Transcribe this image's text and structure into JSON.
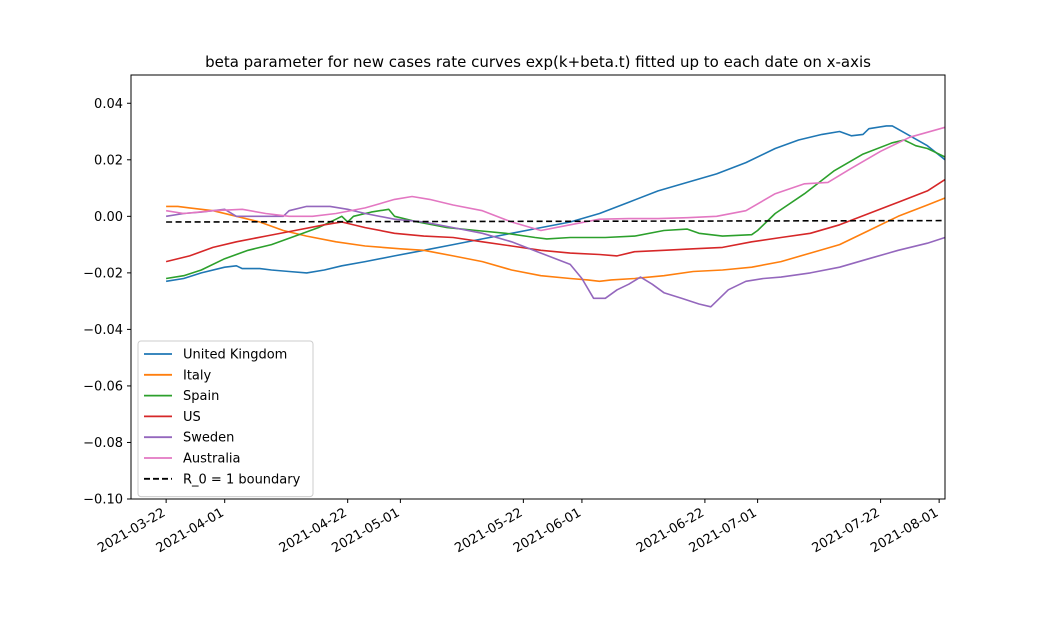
{
  "chart_data": {
    "type": "line",
    "title": "beta parameter for new cases rate curves exp(k+beta.t) fitted up to each date on x-axis",
    "xlabel": "",
    "ylabel": "",
    "xlim": [
      "2021-03-16",
      "2021-08-02"
    ],
    "ylim": [
      -0.1,
      0.05
    ],
    "grid": false,
    "legend_position": "lower-left",
    "x_ticks": [
      "2021-03-22",
      "2021-04-01",
      "2021-04-22",
      "2021-05-01",
      "2021-05-22",
      "2021-06-01",
      "2021-06-22",
      "2021-07-01",
      "2021-07-22",
      "2021-08-01"
    ],
    "y_ticks": [
      0.04,
      0.02,
      0.0,
      -0.02,
      -0.04,
      -0.06,
      -0.08,
      -0.1
    ],
    "y_tick_labels": [
      "0.04",
      "0.02",
      "0.00",
      "−0.02",
      "−0.04",
      "−0.06",
      "−0.08",
      "−0.10"
    ],
    "series": [
      {
        "name": "United Kingdom",
        "color": "#1f77b4",
        "points": [
          [
            "2021-03-22",
            -0.023
          ],
          [
            "2021-03-25",
            -0.022
          ],
          [
            "2021-03-28",
            -0.02
          ],
          [
            "2021-04-01",
            -0.018
          ],
          [
            "2021-04-03",
            -0.0175
          ],
          [
            "2021-04-04",
            -0.0185
          ],
          [
            "2021-04-07",
            -0.0185
          ],
          [
            "2021-04-09",
            -0.019
          ],
          [
            "2021-04-12",
            -0.0195
          ],
          [
            "2021-04-15",
            -0.02
          ],
          [
            "2021-04-18",
            -0.019
          ],
          [
            "2021-04-21",
            -0.0175
          ],
          [
            "2021-04-25",
            -0.016
          ],
          [
            "2021-04-30",
            -0.014
          ],
          [
            "2021-05-05",
            -0.012
          ],
          [
            "2021-05-10",
            -0.01
          ],
          [
            "2021-05-15",
            -0.008
          ],
          [
            "2021-05-20",
            -0.006
          ],
          [
            "2021-05-25",
            -0.004
          ],
          [
            "2021-05-30",
            -0.002
          ],
          [
            "2021-06-04",
            0.001
          ],
          [
            "2021-06-09",
            0.005
          ],
          [
            "2021-06-14",
            0.009
          ],
          [
            "2021-06-19",
            0.012
          ],
          [
            "2021-06-24",
            0.015
          ],
          [
            "2021-06-29",
            0.019
          ],
          [
            "2021-07-04",
            0.024
          ],
          [
            "2021-07-08",
            0.027
          ],
          [
            "2021-07-12",
            0.029
          ],
          [
            "2021-07-15",
            0.03
          ],
          [
            "2021-07-17",
            0.0285
          ],
          [
            "2021-07-19",
            0.029
          ],
          [
            "2021-07-20",
            0.031
          ],
          [
            "2021-07-23",
            0.032
          ],
          [
            "2021-07-24",
            0.032
          ],
          [
            "2021-07-27",
            0.0285
          ],
          [
            "2021-07-30",
            0.025
          ],
          [
            "2021-08-02",
            0.02
          ]
        ]
      },
      {
        "name": "Italy",
        "color": "#ff7f0e",
        "points": [
          [
            "2021-03-22",
            0.0035
          ],
          [
            "2021-03-24",
            0.0035
          ],
          [
            "2021-03-26",
            0.003
          ],
          [
            "2021-03-30",
            0.002
          ],
          [
            "2021-04-03",
            0.0
          ],
          [
            "2021-04-07",
            -0.002
          ],
          [
            "2021-04-11",
            -0.005
          ],
          [
            "2021-04-15",
            -0.007
          ],
          [
            "2021-04-20",
            -0.009
          ],
          [
            "2021-04-25",
            -0.0105
          ],
          [
            "2021-04-28",
            -0.011
          ],
          [
            "2021-05-01",
            -0.0115
          ],
          [
            "2021-05-05",
            -0.012
          ],
          [
            "2021-05-10",
            -0.014
          ],
          [
            "2021-05-15",
            -0.016
          ],
          [
            "2021-05-20",
            -0.019
          ],
          [
            "2021-05-25",
            -0.021
          ],
          [
            "2021-05-30",
            -0.022
          ],
          [
            "2021-06-02",
            -0.0225
          ],
          [
            "2021-06-04",
            -0.023
          ],
          [
            "2021-06-06",
            -0.0225
          ],
          [
            "2021-06-10",
            -0.022
          ],
          [
            "2021-06-15",
            -0.021
          ],
          [
            "2021-06-20",
            -0.0195
          ],
          [
            "2021-06-25",
            -0.019
          ],
          [
            "2021-06-30",
            -0.018
          ],
          [
            "2021-07-05",
            -0.016
          ],
          [
            "2021-07-10",
            -0.013
          ],
          [
            "2021-07-15",
            -0.01
          ],
          [
            "2021-07-20",
            -0.005
          ],
          [
            "2021-07-25",
            0.0
          ],
          [
            "2021-07-30",
            0.004
          ],
          [
            "2021-08-02",
            0.0065
          ]
        ]
      },
      {
        "name": "Spain",
        "color": "#2ca02c",
        "points": [
          [
            "2021-03-22",
            -0.022
          ],
          [
            "2021-03-25",
            -0.021
          ],
          [
            "2021-03-28",
            -0.019
          ],
          [
            "2021-04-01",
            -0.015
          ],
          [
            "2021-04-05",
            -0.012
          ],
          [
            "2021-04-09",
            -0.01
          ],
          [
            "2021-04-13",
            -0.007
          ],
          [
            "2021-04-17",
            -0.004
          ],
          [
            "2021-04-20",
            -0.001
          ],
          [
            "2021-04-21",
            0.0
          ],
          [
            "2021-04-22",
            -0.002
          ],
          [
            "2021-04-23",
            0.0
          ],
          [
            "2021-04-26",
            0.0015
          ],
          [
            "2021-04-29",
            0.0025
          ],
          [
            "2021-04-30",
            0.0
          ],
          [
            "2021-05-04",
            -0.002
          ],
          [
            "2021-05-09",
            -0.004
          ],
          [
            "2021-05-14",
            -0.005
          ],
          [
            "2021-05-19",
            -0.006
          ],
          [
            "2021-05-24",
            -0.0075
          ],
          [
            "2021-05-26",
            -0.008
          ],
          [
            "2021-05-30",
            -0.0075
          ],
          [
            "2021-06-05",
            -0.0075
          ],
          [
            "2021-06-10",
            -0.007
          ],
          [
            "2021-06-15",
            -0.005
          ],
          [
            "2021-06-19",
            -0.0045
          ],
          [
            "2021-06-21",
            -0.006
          ],
          [
            "2021-06-25",
            -0.007
          ],
          [
            "2021-06-30",
            -0.0065
          ],
          [
            "2021-07-01",
            -0.005
          ],
          [
            "2021-07-04",
            0.001
          ],
          [
            "2021-07-09",
            0.008
          ],
          [
            "2021-07-14",
            0.016
          ],
          [
            "2021-07-19",
            0.022
          ],
          [
            "2021-07-24",
            0.026
          ],
          [
            "2021-07-26",
            0.027
          ],
          [
            "2021-07-27",
            0.026
          ],
          [
            "2021-07-28",
            0.025
          ],
          [
            "2021-07-30",
            0.024
          ],
          [
            "2021-07-31",
            0.023
          ],
          [
            "2021-08-02",
            0.021
          ]
        ]
      },
      {
        "name": "US",
        "color": "#d62728",
        "points": [
          [
            "2021-03-22",
            -0.016
          ],
          [
            "2021-03-26",
            -0.014
          ],
          [
            "2021-03-30",
            -0.011
          ],
          [
            "2021-04-03",
            -0.009
          ],
          [
            "2021-04-08",
            -0.007
          ],
          [
            "2021-04-13",
            -0.005
          ],
          [
            "2021-04-18",
            -0.003
          ],
          [
            "2021-04-21",
            -0.002
          ],
          [
            "2021-04-25",
            -0.004
          ],
          [
            "2021-04-30",
            -0.006
          ],
          [
            "2021-05-05",
            -0.007
          ],
          [
            "2021-05-10",
            -0.0075
          ],
          [
            "2021-05-15",
            -0.009
          ],
          [
            "2021-05-20",
            -0.0105
          ],
          [
            "2021-05-25",
            -0.012
          ],
          [
            "2021-05-30",
            -0.013
          ],
          [
            "2021-06-04",
            -0.0135
          ],
          [
            "2021-06-07",
            -0.014
          ],
          [
            "2021-06-10",
            -0.0125
          ],
          [
            "2021-06-15",
            -0.012
          ],
          [
            "2021-06-20",
            -0.0115
          ],
          [
            "2021-06-25",
            -0.011
          ],
          [
            "2021-06-30",
            -0.009
          ],
          [
            "2021-07-05",
            -0.0075
          ],
          [
            "2021-07-10",
            -0.006
          ],
          [
            "2021-07-15",
            -0.003
          ],
          [
            "2021-07-20",
            0.001
          ],
          [
            "2021-07-25",
            0.005
          ],
          [
            "2021-07-30",
            0.009
          ],
          [
            "2021-08-02",
            0.013
          ]
        ]
      },
      {
        "name": "Sweden",
        "color": "#9467bd",
        "points": [
          [
            "2021-03-22",
            0.0
          ],
          [
            "2021-03-25",
            0.001
          ],
          [
            "2021-03-28",
            0.0015
          ],
          [
            "2021-04-01",
            0.0025
          ],
          [
            "2021-04-03",
            0.0
          ],
          [
            "2021-04-07",
            0.0
          ],
          [
            "2021-04-11",
            0.0
          ],
          [
            "2021-04-12",
            0.002
          ],
          [
            "2021-04-15",
            0.0035
          ],
          [
            "2021-04-19",
            0.0035
          ],
          [
            "2021-04-22",
            0.0025
          ],
          [
            "2021-04-25",
            0.001
          ],
          [
            "2021-04-30",
            -0.001
          ],
          [
            "2021-05-05",
            -0.002
          ],
          [
            "2021-05-10",
            -0.004
          ],
          [
            "2021-05-15",
            -0.006
          ],
          [
            "2021-05-20",
            -0.009
          ],
          [
            "2021-05-25",
            -0.013
          ],
          [
            "2021-05-30",
            -0.017
          ],
          [
            "2021-06-01",
            -0.022
          ],
          [
            "2021-06-03",
            -0.029
          ],
          [
            "2021-06-05",
            -0.029
          ],
          [
            "2021-06-07",
            -0.026
          ],
          [
            "2021-06-09",
            -0.024
          ],
          [
            "2021-06-11",
            -0.0215
          ],
          [
            "2021-06-13",
            -0.024
          ],
          [
            "2021-06-15",
            -0.027
          ],
          [
            "2021-06-18",
            -0.029
          ],
          [
            "2021-06-21",
            -0.031
          ],
          [
            "2021-06-23",
            -0.032
          ],
          [
            "2021-06-26",
            -0.026
          ],
          [
            "2021-06-29",
            -0.023
          ],
          [
            "2021-07-02",
            -0.022
          ],
          [
            "2021-07-05",
            -0.0215
          ],
          [
            "2021-07-10",
            -0.02
          ],
          [
            "2021-07-15",
            -0.018
          ],
          [
            "2021-07-20",
            -0.015
          ],
          [
            "2021-07-25",
            -0.012
          ],
          [
            "2021-07-30",
            -0.0095
          ],
          [
            "2021-08-02",
            -0.0075
          ]
        ]
      },
      {
        "name": "Australia",
        "color": "#e377c2",
        "points": [
          [
            "2021-03-22",
            0.002
          ],
          [
            "2021-03-25",
            0.001
          ],
          [
            "2021-03-30",
            0.002
          ],
          [
            "2021-04-04",
            0.0025
          ],
          [
            "2021-04-08",
            0.001
          ],
          [
            "2021-04-12",
            0.0
          ],
          [
            "2021-04-16",
            0.0
          ],
          [
            "2021-04-20",
            0.001
          ],
          [
            "2021-04-25",
            0.003
          ],
          [
            "2021-04-30",
            0.006
          ],
          [
            "2021-05-03",
            0.007
          ],
          [
            "2021-05-06",
            0.006
          ],
          [
            "2021-05-10",
            0.004
          ],
          [
            "2021-05-15",
            0.002
          ],
          [
            "2021-05-20",
            -0.002
          ],
          [
            "2021-05-25",
            -0.005
          ],
          [
            "2021-05-30",
            -0.003
          ],
          [
            "2021-06-04",
            -0.001
          ],
          [
            "2021-06-09",
            -0.0008
          ],
          [
            "2021-06-14",
            -0.0008
          ],
          [
            "2021-06-19",
            -0.0005
          ],
          [
            "2021-06-24",
            0.0
          ],
          [
            "2021-06-29",
            0.002
          ],
          [
            "2021-07-04",
            0.008
          ],
          [
            "2021-07-09",
            0.0115
          ],
          [
            "2021-07-13",
            0.012
          ],
          [
            "2021-07-17",
            0.017
          ],
          [
            "2021-07-22",
            0.023
          ],
          [
            "2021-07-27",
            0.028
          ],
          [
            "2021-08-02",
            0.0315
          ]
        ]
      },
      {
        "name": "R_0 = 1 boundary",
        "color": "#000000",
        "dashed": true,
        "points": [
          [
            "2021-03-22",
            -0.002
          ],
          [
            "2021-08-02",
            -0.0015
          ]
        ]
      }
    ]
  }
}
